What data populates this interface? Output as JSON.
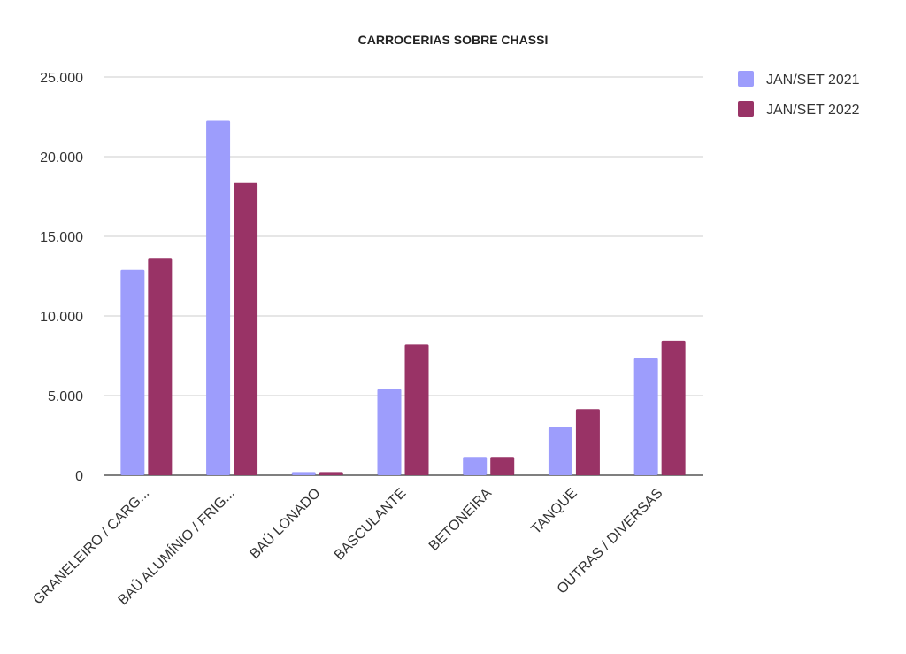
{
  "chart_data": {
    "type": "bar",
    "title": "CARROCERIAS SOBRE CHASSI",
    "categories": [
      "GRANELEIRO / CARG...",
      "BAÚ ALUMÍNIO / FRIG...",
      "BAÚ LONADO",
      "BASCULANTE",
      "BETONEIRA",
      "TANQUE",
      "OUTRAS / DIVERSAS"
    ],
    "series": [
      {
        "name": "JAN/SET 2021",
        "color": "#9d9dfc",
        "values": [
          12900,
          22250,
          200,
          5400,
          1150,
          3000,
          7350
        ]
      },
      {
        "name": "JAN/SET 2022",
        "color": "#993366",
        "values": [
          13600,
          18350,
          200,
          8200,
          1150,
          4150,
          8450
        ]
      }
    ],
    "ylim": [
      0,
      25000
    ],
    "yticks": [
      {
        "value": 0,
        "label": "0"
      },
      {
        "value": 5000,
        "label": "5.000"
      },
      {
        "value": 10000,
        "label": "10.000"
      },
      {
        "value": 15000,
        "label": "15.000"
      },
      {
        "value": 20000,
        "label": "20.000"
      },
      {
        "value": 25000,
        "label": "25.000"
      }
    ],
    "grid": true,
    "legend": "top-right"
  }
}
